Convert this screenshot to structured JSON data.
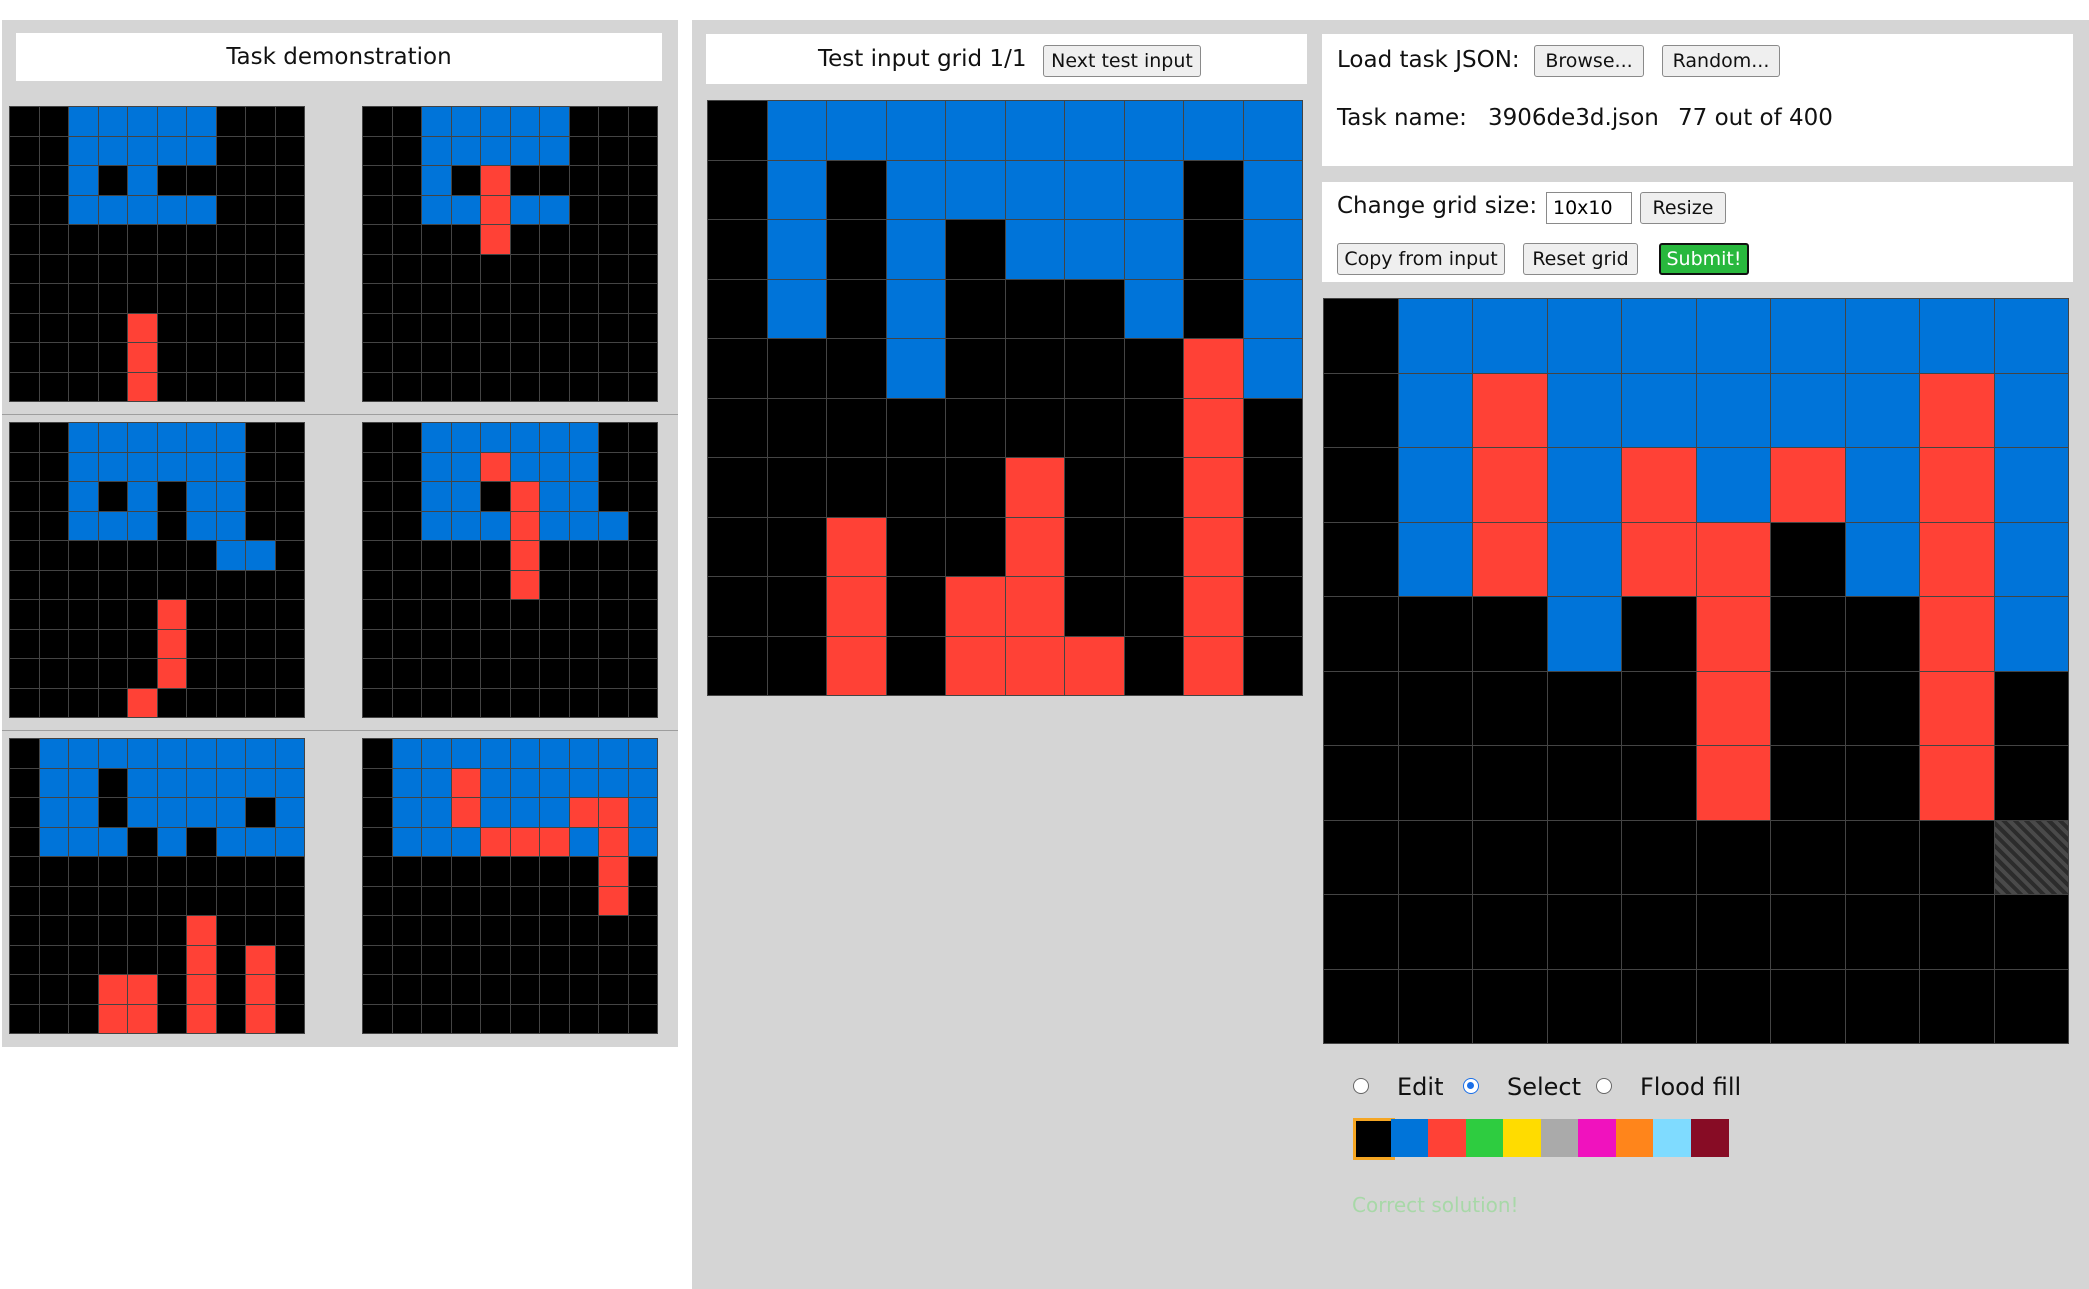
{
  "colors": [
    "#000000",
    "#0074d9",
    "#ff4136",
    "#2ecc40",
    "#ffdc00",
    "#aaaaaa",
    "#f012be",
    "#ff851b",
    "#7fdbff",
    "#870c25"
  ],
  "demo": {
    "title": "Task demonstration",
    "pairs": [
      {
        "input": [
          "0011111000",
          "0011111000",
          "0010100000",
          "0011111000",
          "0000000000",
          "0000000000",
          "0000000000",
          "0000200000",
          "0000200000",
          "0000200000"
        ],
        "output": [
          "0011111000",
          "0011111000",
          "0010200000",
          "0011211000",
          "0000200000",
          "0000000000",
          "0000000000",
          "0000000000",
          "0000000000",
          "0000000000"
        ]
      },
      {
        "input": [
          "0011111100",
          "0011111100",
          "0010101100",
          "0011101100",
          "0000000110",
          "0000000000",
          "0000020000",
          "0000020000",
          "0000020000",
          "0000200000"
        ],
        "output": [
          "0011111100",
          "0011211100",
          "0011021100",
          "0011121110",
          "0000020000",
          "0000020000",
          "0000000000",
          "0000000000",
          "0000000000",
          "0000000000"
        ]
      },
      {
        "input": [
          "0111111111",
          "0110111111",
          "0110111101",
          "0111010111",
          "0000000000",
          "0000000000",
          "0000002000",
          "0000002020",
          "0002202020",
          "0002202020"
        ],
        "output": [
          "0111111111",
          "0112111111",
          "0112111221",
          "0111222121",
          "0000000020",
          "0000000020",
          "0000000000",
          "0000000000",
          "0000000000",
          "0000000000"
        ]
      }
    ]
  },
  "test": {
    "title": "Test input grid 1/1",
    "next_label": "Next test input",
    "input": [
      "0111111111",
      "0101111101",
      "0101011101",
      "0101000101",
      "0001000021",
      "0000000020",
      "0000020020",
      "0020020020",
      "0020220020",
      "0020222020"
    ]
  },
  "task": {
    "load_label": "Load task JSON:",
    "browse_label": "Browse...",
    "random_label": "Random...",
    "name_label": "Task name:",
    "name_value": "3906de3d.json",
    "progress": "77 out of 400"
  },
  "controls": {
    "size_label": "Change grid size:",
    "size_value": "10x10",
    "resize_label": "Resize",
    "copy_label": "Copy from input",
    "reset_label": "Reset grid",
    "submit_label": "Submit!"
  },
  "output_grid": {
    "rows": [
      "0111111111",
      "0121111121",
      "0121212121",
      "0121220121",
      "0001020021",
      "0000020020",
      "0000020020",
      "000000000S",
      "0000000000",
      "0000000000"
    ]
  },
  "modes": {
    "edit_label": "Edit",
    "select_label": "Select",
    "flood_label": "Flood fill",
    "selected": "select"
  },
  "palette": {
    "selected_index": 0
  },
  "status": "Correct solution!"
}
